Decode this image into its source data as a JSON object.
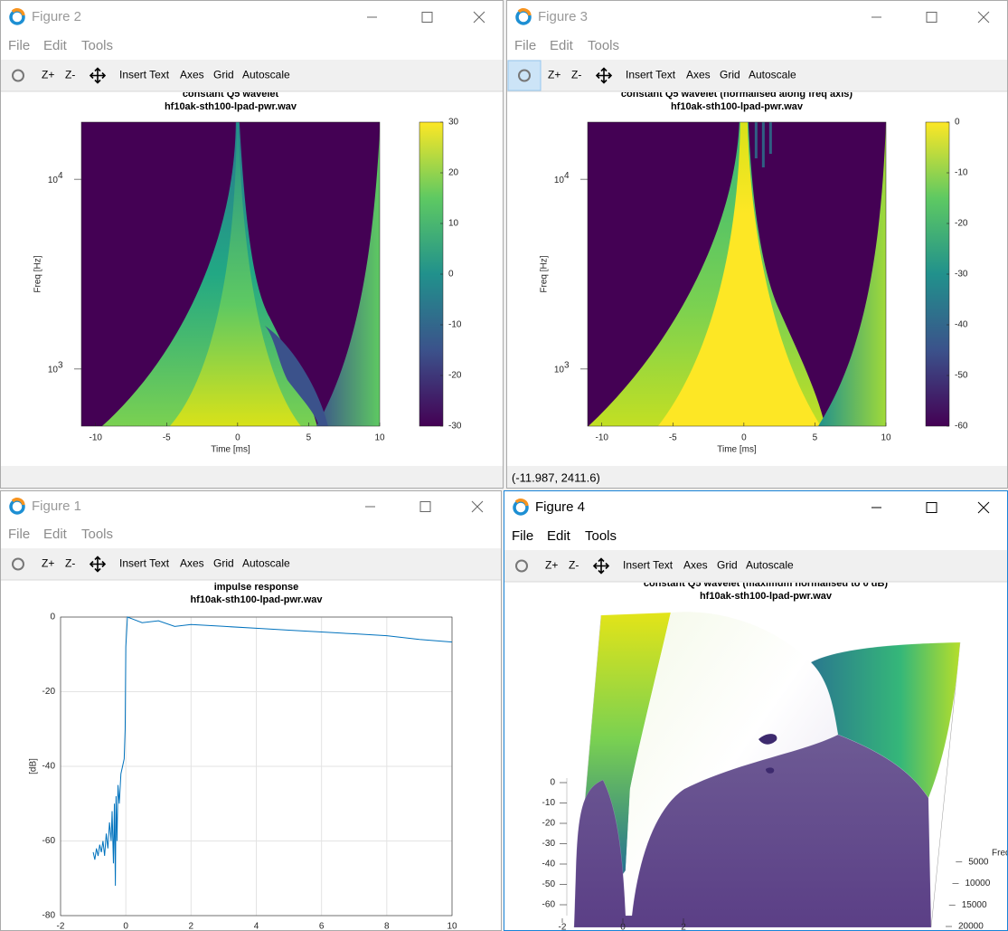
{
  "windows": [
    {
      "title": "Figure 2",
      "menu": [
        "File",
        "Edit",
        "Tools"
      ],
      "toolbar": [
        "Z+",
        "Z-",
        "Insert Text",
        "Axes",
        "Grid",
        "Autoscale"
      ],
      "plot": {
        "type": "heatmap",
        "title": [
          "constant Q5 wavelet",
          "hf10ak-sth100-lpad-pwr.wav"
        ],
        "xlabel": "Time [ms]",
        "ylabel": "Freq [Hz]",
        "xlim": [
          -11,
          10
        ],
        "xticks": [
          -10,
          -5,
          0,
          5,
          10
        ],
        "ylim": [
          500,
          20000
        ],
        "log_y": true,
        "yticks": [
          {
            "value": 1000,
            "label": "10",
            "exponent": "3"
          },
          {
            "value": 10000,
            "label": "10",
            "exponent": "4"
          }
        ],
        "colorbar": {
          "lim": [
            -30,
            30
          ],
          "ticks": [
            -30,
            -20,
            -10,
            0,
            10,
            20,
            30
          ]
        }
      }
    },
    {
      "title": "Figure 3",
      "menu": [
        "File",
        "Edit",
        "Tools"
      ],
      "toolbar": [
        "Z+",
        "Z-",
        "Insert Text",
        "Axes",
        "Grid",
        "Autoscale"
      ],
      "status": "(-11.987, 2411.6)",
      "plot": {
        "type": "heatmap",
        "title": [
          "constant Q5 wavelet (normalised along freq axis)",
          "hf10ak-sth100-lpad-pwr.wav"
        ],
        "xlabel": "Time [ms]",
        "ylabel": "Freq [Hz]",
        "xlim": [
          -11,
          10
        ],
        "xticks": [
          -10,
          -5,
          0,
          5,
          10
        ],
        "ylim": [
          500,
          20000
        ],
        "log_y": true,
        "yticks": [
          {
            "value": 1000,
            "label": "10",
            "exponent": "3"
          },
          {
            "value": 10000,
            "label": "10",
            "exponent": "4"
          }
        ],
        "colorbar": {
          "lim": [
            -60,
            0
          ],
          "ticks": [
            -60,
            -50,
            -40,
            -30,
            -20,
            -10,
            0
          ]
        }
      }
    },
    {
      "title": "Figure 1",
      "menu": [
        "File",
        "Edit",
        "Tools"
      ],
      "toolbar": [
        "Z+",
        "Z-",
        "Insert Text",
        "Axes",
        "Grid",
        "Autoscale"
      ],
      "plot": {
        "type": "line",
        "title": [
          "impulse response",
          "hf10ak-sth100-lpad-pwr.wav"
        ],
        "ylabel": "[dB]",
        "xlim": [
          -2,
          10
        ],
        "xticks": [
          -2,
          0,
          2,
          4,
          6,
          8,
          10
        ],
        "ylim": [
          -80,
          0
        ],
        "yticks": [
          -80,
          -60,
          -40,
          -20,
          0
        ],
        "grid": true,
        "color": "#0072bd",
        "x": [
          -1.0,
          -0.95,
          -0.9,
          -0.85,
          -0.8,
          -0.75,
          -0.7,
          -0.65,
          -0.6,
          -0.55,
          -0.5,
          -0.45,
          -0.42,
          -0.38,
          -0.35,
          -0.32,
          -0.3,
          -0.27,
          -0.24,
          -0.2,
          -0.15,
          -0.1,
          -0.05,
          -0.02,
          0,
          0.05,
          0.2,
          0.5,
          1,
          1.5,
          2,
          3,
          4,
          5,
          6,
          7,
          8,
          9,
          10
        ],
        "values": [
          -63,
          -65,
          -62,
          -64,
          -61,
          -63,
          -60,
          -64,
          -58,
          -62,
          -55,
          -60,
          -52,
          -66,
          -50,
          -72,
          -48,
          -60,
          -45,
          -50,
          -42,
          -40,
          -38,
          -30,
          -8,
          0,
          -0.5,
          -1.5,
          -1,
          -2.5,
          -2,
          -2.5,
          -3,
          -3.5,
          -4,
          -4.5,
          -5,
          -6,
          -6.7
        ]
      }
    },
    {
      "title": "Figure 4",
      "menu": [
        "File",
        "Edit",
        "Tools"
      ],
      "toolbar": [
        "Z+",
        "Z-",
        "Insert Text",
        "Axes",
        "Grid",
        "Autoscale"
      ],
      "plot": {
        "type": "surface",
        "title": [
          "constant Q5 wavelet (maximum normalised to 0 dB)",
          "hf10ak-sth100-lpad-pwr.wav"
        ],
        "ylabel": "Freq",
        "xlim": [
          -2,
          10
        ],
        "xticks": [
          -2,
          0,
          2
        ],
        "ylim": [
          0,
          20000
        ],
        "yticks": [
          5000,
          10000,
          15000,
          20000
        ],
        "zlim": [
          -60,
          0
        ],
        "zticks": [
          0,
          -10,
          -20,
          -30,
          -40,
          -50,
          -60
        ]
      }
    }
  ]
}
